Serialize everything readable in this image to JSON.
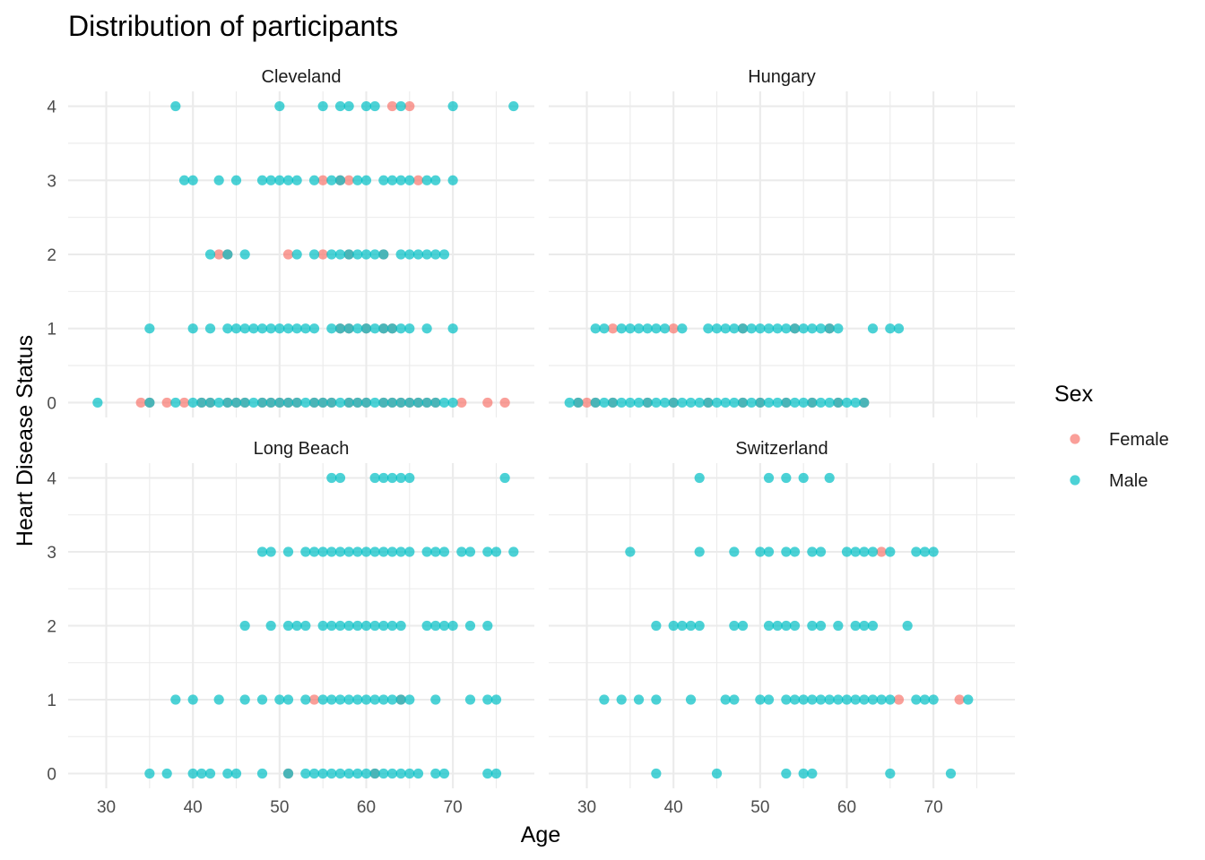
{
  "chart_data": {
    "type": "scatter",
    "title": "Distribution of participants",
    "xlabel": "Age",
    "ylabel": "Heart Disease Status",
    "xlim": [
      25.6,
      79.4
    ],
    "ylim": [
      -0.2,
      4.2
    ],
    "xticks": [
      30,
      40,
      50,
      60,
      70
    ],
    "yticks": [
      0,
      1,
      2,
      3,
      4
    ],
    "legend": {
      "title": "Sex",
      "position": "right",
      "entries": [
        {
          "name": "Female",
          "color": "#F8766D"
        },
        {
          "name": "Male",
          "color": "#00BFC4"
        }
      ]
    },
    "facets": [
      {
        "name": "Cleveland",
        "points": {
          "Female": [
            {
              "y": 4,
              "x": [
                63,
                65
              ]
            },
            {
              "y": 3,
              "x": [
                55,
                57,
                58,
                66
              ]
            },
            {
              "y": 2,
              "x": [
                43,
                44,
                51,
                55,
                58,
                62
              ]
            },
            {
              "y": 1,
              "x": [
                57,
                58,
                60,
                62,
                63
              ]
            },
            {
              "y": 0,
              "x": [
                34,
                35,
                37,
                39,
                41,
                42,
                44,
                45,
                46,
                48,
                49,
                50,
                51,
                52,
                54,
                55,
                56,
                58,
                59,
                60,
                62,
                63,
                64,
                65,
                66,
                67,
                68,
                71,
                74,
                76
              ]
            }
          ],
          "Male": [
            {
              "y": 4,
              "x": [
                38,
                50,
                55,
                57,
                58,
                60,
                61,
                64,
                70,
                77
              ]
            },
            {
              "y": 3,
              "x": [
                39,
                40,
                43,
                45,
                48,
                49,
                50,
                51,
                52,
                54,
                56,
                57,
                59,
                60,
                62,
                63,
                64,
                65,
                67,
                68,
                70
              ]
            },
            {
              "y": 2,
              "x": [
                42,
                44,
                46,
                52,
                54,
                56,
                57,
                58,
                59,
                60,
                61,
                62,
                64,
                65,
                66,
                67,
                68,
                69
              ]
            },
            {
              "y": 1,
              "x": [
                35,
                40,
                42,
                44,
                45,
                46,
                47,
                48,
                49,
                50,
                51,
                52,
                53,
                54,
                56,
                57,
                58,
                59,
                60,
                61,
                62,
                63,
                64,
                65,
                67,
                70
              ]
            },
            {
              "y": 0,
              "x": [
                29,
                35,
                38,
                40,
                41,
                42,
                43,
                44,
                45,
                46,
                47,
                48,
                49,
                50,
                51,
                52,
                53,
                54,
                55,
                56,
                57,
                58,
                59,
                60,
                61,
                62,
                63,
                64,
                65,
                66,
                67,
                68,
                69,
                70
              ]
            }
          ]
        }
      },
      {
        "name": "Hungary",
        "points": {
          "Female": [
            {
              "y": 1,
              "x": [
                33,
                40,
                48,
                54,
                58
              ]
            },
            {
              "y": 0,
              "x": [
                29,
                30,
                31,
                33,
                37,
                40,
                44,
                48,
                50,
                53,
                56,
                59,
                62
              ]
            }
          ],
          "Male": [
            {
              "y": 1,
              "x": [
                31,
                32,
                34,
                35,
                36,
                37,
                38,
                39,
                41,
                44,
                45,
                46,
                47,
                48,
                49,
                50,
                51,
                52,
                53,
                54,
                55,
                56,
                57,
                58,
                59,
                63,
                65,
                66
              ]
            },
            {
              "y": 0,
              "x": [
                28,
                29,
                31,
                32,
                33,
                34,
                35,
                36,
                37,
                38,
                39,
                40,
                41,
                42,
                43,
                44,
                45,
                46,
                47,
                48,
                49,
                50,
                51,
                52,
                53,
                54,
                55,
                56,
                57,
                58,
                59,
                60,
                61,
                62
              ]
            }
          ]
        }
      },
      {
        "name": "Long Beach",
        "points": {
          "Female": [
            {
              "y": 1,
              "x": [
                54,
                64
              ]
            },
            {
              "y": 0,
              "x": [
                51,
                61
              ]
            }
          ],
          "Male": [
            {
              "y": 4,
              "x": [
                56,
                57,
                61,
                62,
                63,
                64,
                65,
                76
              ]
            },
            {
              "y": 3,
              "x": [
                48,
                49,
                51,
                53,
                54,
                55,
                56,
                57,
                58,
                59,
                60,
                61,
                62,
                63,
                64,
                65,
                67,
                68,
                69,
                71,
                72,
                74,
                75,
                77
              ]
            },
            {
              "y": 2,
              "x": [
                46,
                49,
                51,
                52,
                53,
                55,
                56,
                57,
                58,
                59,
                60,
                61,
                62,
                63,
                64,
                67,
                68,
                69,
                70,
                72,
                74
              ]
            },
            {
              "y": 1,
              "x": [
                38,
                40,
                43,
                46,
                48,
                50,
                51,
                53,
                55,
                56,
                57,
                58,
                59,
                60,
                61,
                62,
                63,
                64,
                65,
                68,
                72,
                74,
                75
              ]
            },
            {
              "y": 0,
              "x": [
                35,
                37,
                40,
                41,
                42,
                44,
                45,
                48,
                51,
                53,
                54,
                55,
                56,
                57,
                58,
                59,
                60,
                61,
                62,
                63,
                64,
                65,
                66,
                68,
                69,
                74,
                75
              ]
            }
          ]
        }
      },
      {
        "name": "Switzerland",
        "points": {
          "Female": [
            {
              "y": 3,
              "x": [
                64
              ]
            },
            {
              "y": 1,
              "x": [
                66,
                73
              ]
            }
          ],
          "Male": [
            {
              "y": 4,
              "x": [
                43,
                51,
                53,
                55,
                58
              ]
            },
            {
              "y": 3,
              "x": [
                35,
                43,
                47,
                50,
                51,
                53,
                54,
                56,
                57,
                60,
                61,
                62,
                63,
                65,
                68,
                69,
                70
              ]
            },
            {
              "y": 2,
              "x": [
                38,
                40,
                41,
                42,
                43,
                47,
                48,
                51,
                52,
                53,
                54,
                56,
                57,
                59,
                61,
                62,
                63,
                67
              ]
            },
            {
              "y": 1,
              "x": [
                32,
                34,
                36,
                38,
                42,
                46,
                47,
                50,
                51,
                53,
                54,
                55,
                56,
                57,
                58,
                59,
                60,
                61,
                62,
                63,
                64,
                65,
                68,
                69,
                70,
                74
              ]
            },
            {
              "y": 0,
              "x": [
                38,
                45,
                53,
                55,
                56,
                65,
                72
              ]
            }
          ]
        }
      }
    ]
  }
}
